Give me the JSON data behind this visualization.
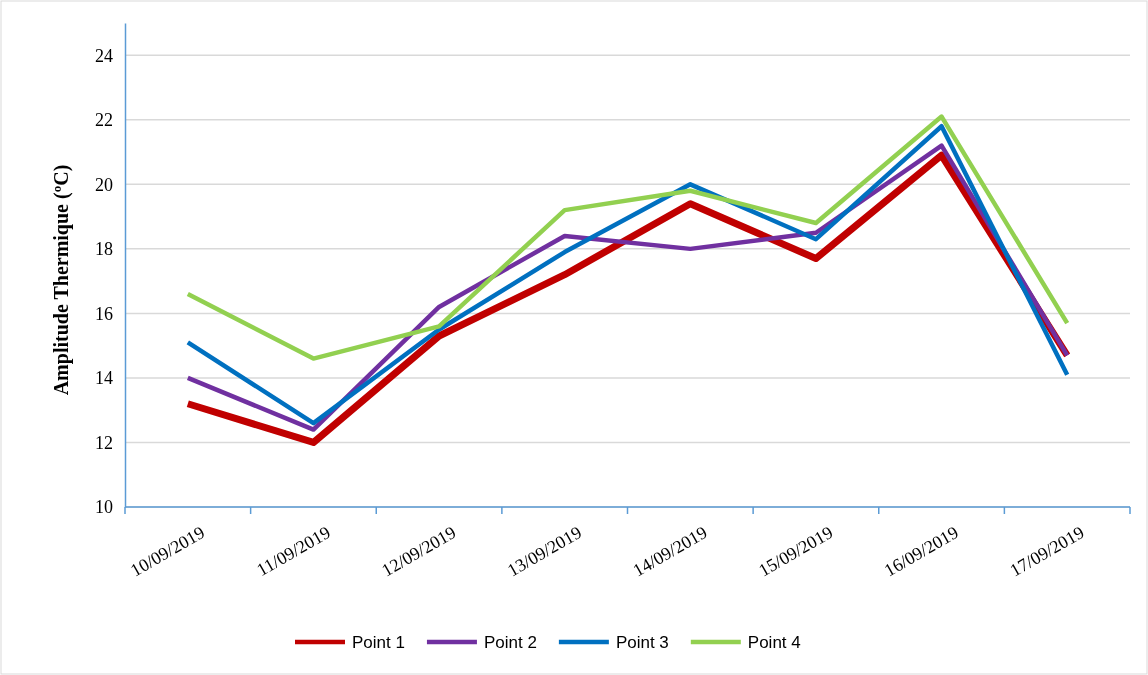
{
  "chart_data": {
    "type": "line",
    "ylabel": "Amplitude Thermique (ºC)",
    "categories": [
      "10/09/2019",
      "11/09/2019",
      "12/09/2019",
      "13/09/2019",
      "14/09/2019",
      "15/09/2019",
      "16/09/2019",
      "17/09/2019"
    ],
    "series": [
      {
        "name": "Point 1",
        "color": "#c00000",
        "values": [
          13.2,
          12.0,
          15.3,
          17.2,
          19.4,
          17.7,
          20.9,
          14.7
        ]
      },
      {
        "name": "Point 2",
        "color": "#7030a0",
        "values": [
          14.0,
          12.4,
          16.2,
          18.4,
          18.0,
          18.5,
          21.2,
          14.7
        ]
      },
      {
        "name": "Point 3",
        "color": "#0070c0",
        "values": [
          15.1,
          12.6,
          15.5,
          17.9,
          20.0,
          18.3,
          21.8,
          14.1
        ]
      },
      {
        "name": "Point 4",
        "color": "#92d050",
        "values": [
          16.6,
          14.6,
          15.6,
          19.2,
          19.8,
          18.8,
          22.1,
          15.7
        ]
      }
    ],
    "ylim": [
      10,
      25
    ],
    "yticks": [
      10,
      12,
      14,
      16,
      18,
      20,
      22,
      24
    ],
    "grid": "y",
    "legend": "bottom",
    "marker": "none",
    "line_style": "solid"
  }
}
